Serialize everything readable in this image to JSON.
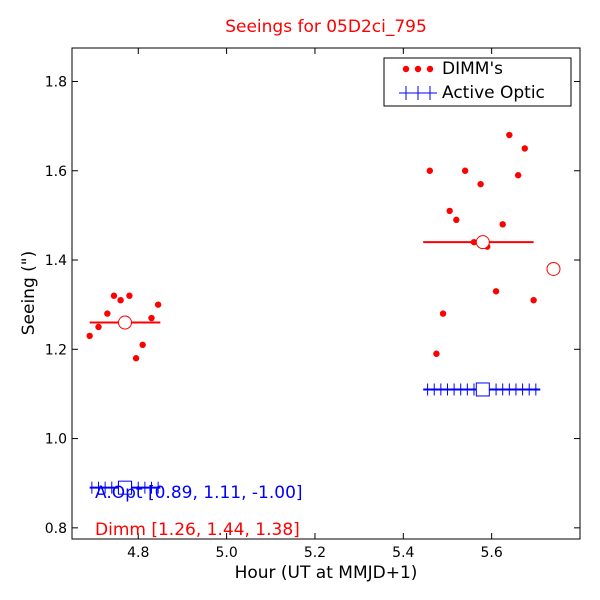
{
  "chart_data": {
    "type": "scatter",
    "title": "Seeings for 05D2ci_795",
    "xlabel": "Hour (UT at MMJD+1)",
    "ylabel": "Seeing (\")",
    "xlim": [
      4.65,
      5.8
    ],
    "ylim": [
      0.775,
      1.875
    ],
    "x_ticks": [
      4.8,
      5.0,
      5.2,
      5.4,
      5.6
    ],
    "y_ticks": [
      0.8,
      1.0,
      1.2,
      1.4,
      1.6,
      1.8
    ],
    "x_tick_labels": [
      "4.8",
      "5.0",
      "5.2",
      "5.4",
      "5.6"
    ],
    "y_tick_labels": [
      "0.8",
      "1.0",
      "1.2",
      "1.4",
      "1.6",
      "1.8"
    ],
    "legend_position": "top-right",
    "colors": {
      "dimm": "#ff0000",
      "aopt": "#0000ff",
      "axis": "#000000"
    },
    "series": [
      {
        "name": "DIMM's",
        "marker": "dot",
        "x": [
          4.69,
          4.71,
          4.73,
          4.745,
          4.76,
          4.78,
          4.795,
          4.81,
          4.83,
          4.845,
          5.46,
          5.475,
          5.49,
          5.505,
          5.52,
          5.54,
          5.56,
          5.575,
          5.59,
          5.61,
          5.625,
          5.64,
          5.66,
          5.675,
          5.695
        ],
        "y": [
          1.23,
          1.25,
          1.28,
          1.32,
          1.31,
          1.32,
          1.18,
          1.21,
          1.27,
          1.3,
          1.6,
          1.19,
          1.28,
          1.51,
          1.49,
          1.6,
          1.44,
          1.57,
          1.43,
          1.33,
          1.48,
          1.68,
          1.59,
          1.65,
          1.31
        ]
      },
      {
        "name": "Active Optic",
        "marker": "plus",
        "x": [
          4.695,
          4.71,
          4.725,
          4.74,
          4.755,
          4.785,
          4.8,
          4.815,
          4.83,
          4.845,
          5.455,
          5.47,
          5.485,
          5.5,
          5.515,
          5.53,
          5.545,
          5.56,
          5.575,
          5.61,
          5.625,
          5.64,
          5.655,
          5.67,
          5.685,
          5.7
        ],
        "y": [
          0.89,
          0.89,
          0.89,
          0.89,
          0.89,
          0.89,
          0.89,
          0.89,
          0.89,
          0.89,
          1.11,
          1.11,
          1.11,
          1.11,
          1.11,
          1.11,
          1.11,
          1.11,
          1.11,
          1.11,
          1.11,
          1.11,
          1.11,
          1.11,
          1.11,
          1.11
        ]
      }
    ],
    "dimm_medians": [
      {
        "x_start": 4.69,
        "x_end": 4.85,
        "y": 1.26,
        "center_x": 4.77
      },
      {
        "x_start": 5.445,
        "x_end": 5.695,
        "y": 1.44,
        "center_x": 5.58
      }
    ],
    "dimm_overall_marker": {
      "x": 5.74,
      "y": 1.38
    },
    "aopt_medians": [
      {
        "x_start": 4.69,
        "x_end": 4.85,
        "y": 0.89,
        "center_x": 4.77
      },
      {
        "x_start": 5.445,
        "x_end": 5.71,
        "y": 1.11,
        "center_x": 5.58
      }
    ],
    "annotations": {
      "aopt": "A.Opt [0.89, 1.11, -1.00]",
      "dimm": "Dimm [1.26, 1.44, 1.38]"
    }
  }
}
